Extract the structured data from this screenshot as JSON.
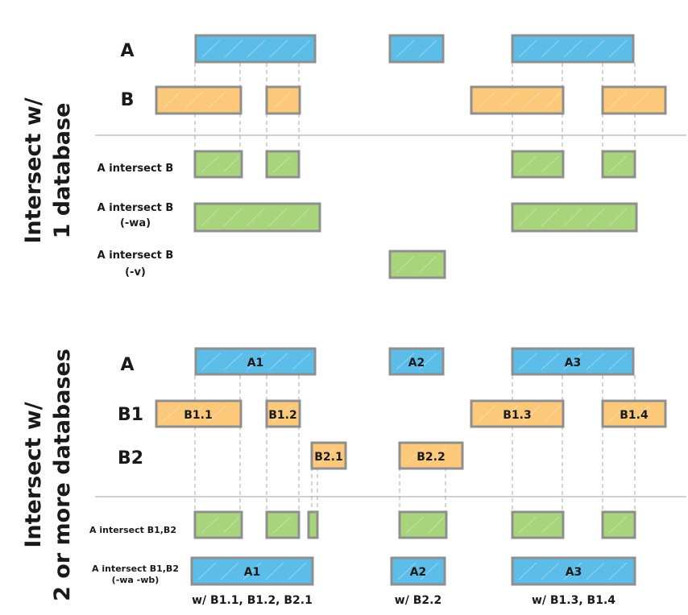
{
  "top": {
    "title_line1": "Intersect w/",
    "title_line2": "1 database",
    "rows": [
      {
        "label": "A"
      },
      {
        "label": "B"
      },
      {
        "label": "A intersect B"
      },
      {
        "label_line1": "A intersect B",
        "label_line2": "(-wa)"
      },
      {
        "label_line1": "A intersect B",
        "label_line2": "(-v)"
      }
    ]
  },
  "bottom": {
    "title_line1": "Intersect w/",
    "title_line2": "2 or more databases",
    "rows": [
      {
        "label": "A"
      },
      {
        "label": "B1"
      },
      {
        "label": "B2"
      },
      {
        "label": "A intersect B1,B2"
      },
      {
        "label_line1": "A intersect B1,B2",
        "label_line2": "(-wa -wb)"
      }
    ],
    "a_boxes": [
      "A1",
      "A2",
      "A3"
    ],
    "b1_boxes": [
      "B1.1",
      "B1.2",
      "B1.3",
      "B1.4"
    ],
    "b2_boxes": [
      "B2.1",
      "B2.2"
    ],
    "result_boxes": [
      "A1",
      "A2",
      "A3"
    ],
    "captions": [
      "w/ B1.1, B1.2, B2.1",
      "w/ B2.2",
      "w/ B1.3, B1.4"
    ]
  },
  "colors": {
    "file_a": "#5dbde9",
    "file_b": "#fcc97a",
    "result": "#a8d47b",
    "outline": "#8f8f8f"
  }
}
